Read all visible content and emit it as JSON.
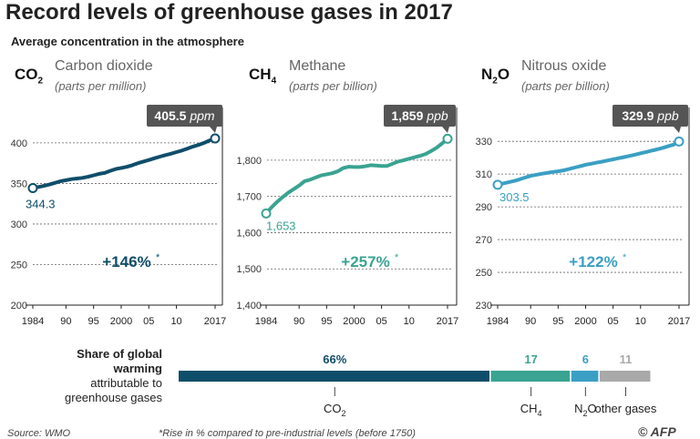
{
  "title": "Record levels of greenhouse gases in 2017",
  "subtitle": "Average concentration in the atmosphere",
  "colors": {
    "co2": "#0f4e6a",
    "ch4": "#3aa391",
    "n2o": "#3b9fc4",
    "other": "#a9a9a9",
    "callout": "#555555"
  },
  "share": {
    "label_bold": "Share of global warming",
    "label_rest": " attributable to greenhouse gases",
    "segments": [
      {
        "value": 66,
        "label": "66%",
        "gas": "CO2",
        "color": "#0f4e6a"
      },
      {
        "value": 17,
        "label": "17",
        "gas": "CH4",
        "color": "#3aa391"
      },
      {
        "value": 6,
        "label": "6",
        "gas": "N2O",
        "color": "#3b9fc4"
      },
      {
        "value": 11,
        "label": "11",
        "gas": "other gases",
        "color": "#a9a9a9"
      }
    ]
  },
  "footer": {
    "source": "Source: WMO",
    "note": "*Rise in % compared to pre-industrial levels (before 1750)",
    "credit": "© AFP"
  },
  "chart_data": [
    {
      "type": "line",
      "formula": "CO",
      "formula_sub": "2",
      "name": "Carbon dioxide",
      "unit": "(parts per million)",
      "x": [
        1984,
        1985,
        1986,
        1987,
        1988,
        1989,
        1990,
        1991,
        1992,
        1993,
        1994,
        1995,
        1996,
        1997,
        1998,
        1999,
        2000,
        2001,
        2002,
        2003,
        2004,
        2005,
        2006,
        2007,
        2008,
        2009,
        2010,
        2011,
        2012,
        2013,
        2014,
        2015,
        2016,
        2017
      ],
      "y": [
        344.3,
        345.7,
        347.0,
        348.7,
        350.7,
        352.7,
        354.0,
        355.3,
        356.1,
        356.9,
        358.2,
        360.0,
        361.8,
        363.0,
        365.5,
        367.8,
        369.1,
        370.5,
        372.5,
        375.0,
        377.0,
        378.9,
        381.0,
        383.0,
        385.0,
        386.6,
        388.7,
        390.6,
        393.0,
        395.5,
        397.5,
        400.0,
        403.0,
        405.5
      ],
      "start_label": "344.3",
      "end_value": "405.5",
      "end_unit": "ppm",
      "change": "+146%",
      "change_star": "*",
      "ylim": [
        200,
        410
      ],
      "yticks": [
        200,
        250,
        300,
        350,
        400
      ],
      "ytick_labels": [
        "200",
        "250",
        "300",
        "350",
        "400"
      ],
      "xticks": [
        1984,
        1990,
        1995,
        2000,
        2005,
        2010,
        2017
      ],
      "xtick_labels": [
        "1984",
        "90",
        "95",
        "2000",
        "05",
        "10",
        "2017"
      ],
      "color": "#0f4e6a"
    },
    {
      "type": "line",
      "formula": "CH",
      "formula_sub": "4",
      "name": "Methane",
      "unit": "(parts per billion)",
      "x": [
        1984,
        1985,
        1986,
        1987,
        1988,
        1989,
        1990,
        1991,
        1992,
        1993,
        1994,
        1995,
        1996,
        1997,
        1998,
        1999,
        2000,
        2001,
        2002,
        2003,
        2004,
        2005,
        2006,
        2007,
        2008,
        2009,
        2010,
        2011,
        2012,
        2013,
        2014,
        2015,
        2016,
        2017
      ],
      "y": [
        1653,
        1670,
        1685,
        1698,
        1710,
        1720,
        1730,
        1742,
        1746,
        1752,
        1758,
        1761,
        1764,
        1769,
        1778,
        1782,
        1781,
        1781,
        1783,
        1786,
        1785,
        1784,
        1784,
        1790,
        1796,
        1800,
        1804,
        1808,
        1812,
        1817,
        1825,
        1834,
        1846,
        1859
      ],
      "start_label": "1,653",
      "end_value": "1,859",
      "end_unit": "ppb",
      "change": "+257%",
      "change_star": "*",
      "ylim": [
        1400,
        1870
      ],
      "yticks": [
        1400,
        1500,
        1600,
        1700,
        1800
      ],
      "ytick_labels": [
        "1,400",
        "1,500",
        "1,600",
        "1,700",
        "1,800"
      ],
      "xticks": [
        1984,
        1990,
        1995,
        2000,
        2005,
        2010,
        2017
      ],
      "xtick_labels": [
        "1984",
        "90",
        "95",
        "2000",
        "05",
        "10",
        "2017"
      ],
      "color": "#3aa391"
    },
    {
      "type": "line",
      "formula": "N",
      "formula_sub": "2",
      "formula_tail": "O",
      "name": "Nitrous oxide",
      "unit": "(parts per billion)",
      "x": [
        1984,
        1985,
        1986,
        1987,
        1988,
        1989,
        1990,
        1991,
        1992,
        1993,
        1994,
        1995,
        1996,
        1997,
        1998,
        1999,
        2000,
        2001,
        2002,
        2003,
        2004,
        2005,
        2006,
        2007,
        2008,
        2009,
        2010,
        2011,
        2012,
        2013,
        2014,
        2015,
        2016,
        2017
      ],
      "y": [
        303.5,
        304.3,
        305.0,
        305.8,
        306.8,
        307.9,
        308.9,
        309.6,
        310.2,
        310.7,
        311.3,
        311.7,
        312.3,
        313.1,
        314.0,
        314.8,
        315.7,
        316.3,
        317.0,
        317.6,
        318.3,
        319.0,
        319.7,
        320.4,
        321.1,
        321.9,
        322.7,
        323.5,
        324.3,
        325.1,
        326.0,
        327.0,
        328.0,
        329.9
      ],
      "start_label": "303.5",
      "end_value": "329.9",
      "end_unit": "ppb",
      "change": "+122%",
      "change_star": "*",
      "ylim": [
        230,
        334
      ],
      "yticks": [
        230,
        250,
        270,
        290,
        310,
        330
      ],
      "ytick_labels": [
        "230",
        "250",
        "270",
        "290",
        "310",
        "330"
      ],
      "xticks": [
        1984,
        1990,
        1995,
        2000,
        2005,
        2010,
        2017
      ],
      "xtick_labels": [
        "1984",
        "90",
        "95",
        "2000",
        "05",
        "10",
        "2017"
      ],
      "color": "#3b9fc4"
    }
  ]
}
